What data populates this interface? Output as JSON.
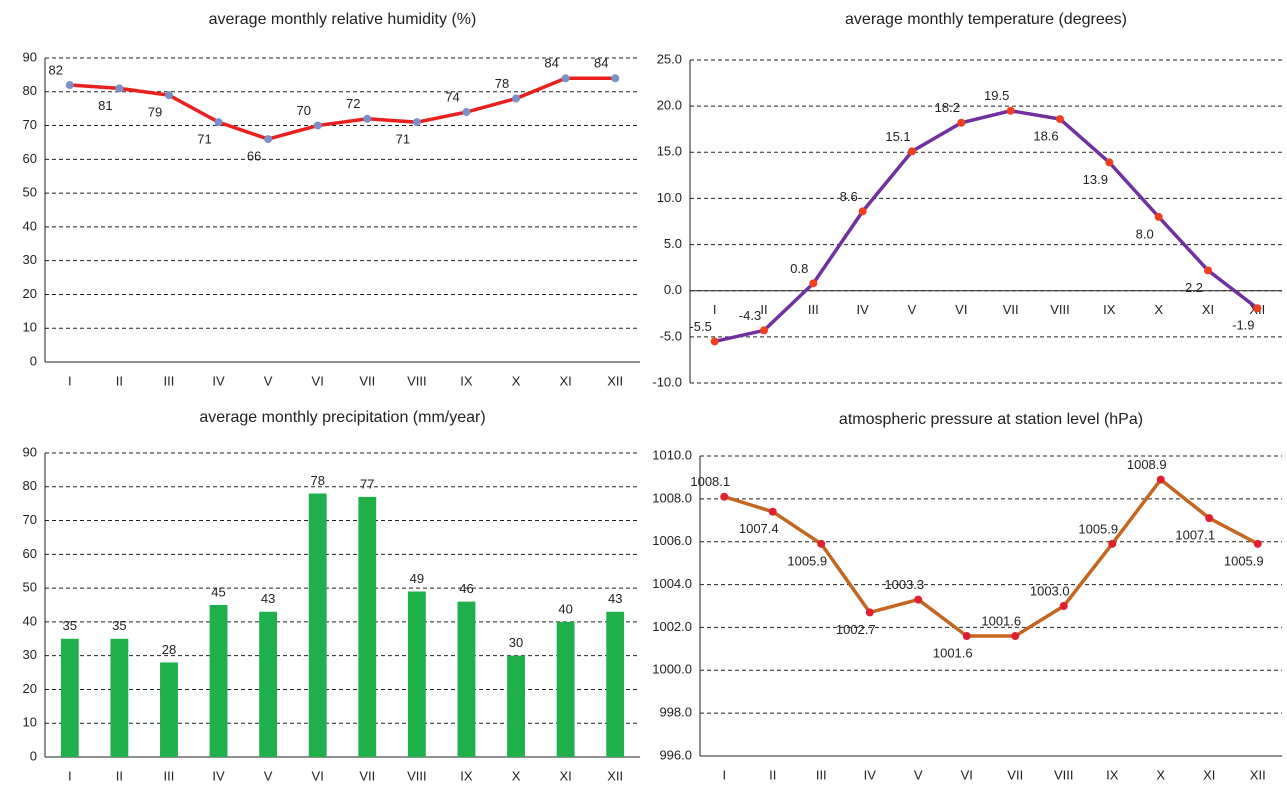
{
  "chart_data": [
    {
      "type": "line",
      "title": "average monthly  relative humidity (%)",
      "categories": [
        "I",
        "II",
        "III",
        "IV",
        "V",
        "VI",
        "VII",
        "VIII",
        "IX",
        "X",
        "XI",
        "XII"
      ],
      "series": [
        {
          "name": "humidity",
          "color": "#e8201e",
          "marker_color": "#7b8fc9",
          "values": [
            82,
            81,
            79,
            71,
            66,
            70,
            72,
            71,
            74,
            78,
            84,
            84
          ]
        }
      ],
      "ylim": [
        0,
        90
      ],
      "yticks": [
        0,
        10,
        20,
        30,
        40,
        50,
        60,
        70,
        80,
        90
      ],
      "grid": true
    },
    {
      "type": "line",
      "title": "average monthly  temperature (degrees)",
      "categories": [
        "I",
        "II",
        "III",
        "IV",
        "V",
        "VI",
        "VII",
        "VIII",
        "IX",
        "X",
        "XI",
        "XII"
      ],
      "series": [
        {
          "name": "temperature",
          "color": "#7030a0",
          "marker_color": "#f04020",
          "values": [
            -5.5,
            -4.3,
            0.8,
            8.6,
            15.1,
            18.2,
            19.5,
            18.6,
            13.9,
            8,
            2.2,
            -1.9
          ],
          "value_labels": [
            "-5.5",
            "-4.3",
            "0.8",
            "8.6",
            "15.1",
            "18.2",
            "19.5",
            "18.6",
            "13.9",
            "8.0",
            "2.2",
            "-1.9"
          ]
        }
      ],
      "ylim": [
        -10,
        25
      ],
      "yticks": [
        {
          "value": -10,
          "label": "-10.0"
        },
        {
          "value": -5,
          "label": "-5.0"
        },
        {
          "value": 0,
          "label": "0.0"
        },
        {
          "value": 5,
          "label": "5.0"
        },
        {
          "value": 10,
          "label": "10.0"
        },
        {
          "value": 15,
          "label": "15.0"
        },
        {
          "value": 20,
          "label": "20.0"
        },
        {
          "value": 25,
          "label": "25.0"
        }
      ],
      "grid": true
    },
    {
      "type": "bar",
      "title": "average monthly  precipitation (mm/year)",
      "categories": [
        "I",
        "II",
        "III",
        "IV",
        "V",
        "VI",
        "VII",
        "VIII",
        "IX",
        "X",
        "XI",
        "XII"
      ],
      "series": [
        {
          "name": "precipitation",
          "color": "#1fb04c",
          "values": [
            35,
            35,
            28,
            45,
            43,
            78,
            77,
            49,
            46,
            30,
            40,
            43
          ]
        }
      ],
      "ylim": [
        0,
        90
      ],
      "yticks": [
        0,
        10,
        20,
        30,
        40,
        50,
        60,
        70,
        80,
        90
      ],
      "grid": true
    },
    {
      "type": "line",
      "title": "atmospheric pressure at station level (hPa)",
      "categories": [
        "I",
        "II",
        "III",
        "IV",
        "V",
        "VI",
        "VII",
        "VIII",
        "IX",
        "X",
        "XI",
        "XII"
      ],
      "series": [
        {
          "name": "pressure",
          "color": "#c5651f",
          "marker_color": "#e02030",
          "values": [
            1008.1,
            1007.4,
            1005.9,
            1002.7,
            1003.3,
            1001.6,
            1001.6,
            1003,
            1005.9,
            1008.9,
            1007.1,
            1005.9
          ],
          "value_labels": [
            "1008.1",
            "1007.4",
            "1005.9",
            "1002.7",
            "1003.3",
            "1001.6",
            "1001.6",
            "1003.0",
            "1005.9",
            "1008.9",
            "1007.1",
            "1005.9"
          ]
        }
      ],
      "ylim": [
        996,
        1010
      ],
      "yticks": [
        {
          "value": 996,
          "label": "996.0"
        },
        {
          "value": 998,
          "label": "998.0"
        },
        {
          "value": 1000,
          "label": "1000.0"
        },
        {
          "value": 1002,
          "label": "1002.0"
        },
        {
          "value": 1004,
          "label": "1004.0"
        },
        {
          "value": 1006,
          "label": "1006.0"
        },
        {
          "value": 1008,
          "label": "1008.0"
        },
        {
          "value": 1010,
          "label": "1010.0"
        }
      ],
      "grid": true
    }
  ]
}
